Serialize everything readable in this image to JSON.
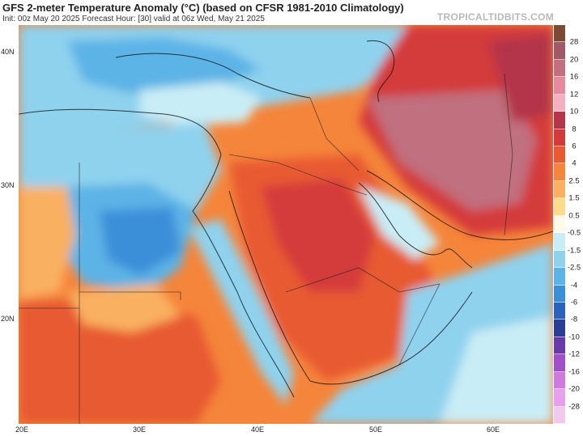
{
  "header": {
    "title": "GFS 2-meter Temperature Anomaly (°C) (based on CFSR 1981-2010 Climatology)",
    "subtitle": "Init: 00z May 20 2025   Forecast Hour: [30]   valid at 06z Wed, May 21 2025",
    "brand": "TROPICALTIDBITS.COM"
  },
  "axes": {
    "lat_labels": [
      "40N",
      "30N",
      "20N"
    ],
    "lat_values": [
      40,
      30,
      20
    ],
    "lon_labels": [
      "20E",
      "30E",
      "40E",
      "50E",
      "60E"
    ],
    "lon_values": [
      20,
      30,
      40,
      50,
      60
    ],
    "lon_range": [
      20,
      65
    ],
    "lat_range": [
      12,
      42
    ]
  },
  "colorbar": {
    "labels": [
      "28",
      "20",
      "16",
      "12",
      "10",
      "8",
      "6",
      "4",
      "2.5",
      "1.5",
      "0.5",
      "-0.5",
      "-1.5",
      "-2.5",
      "-4",
      "-6",
      "-8",
      "-10",
      "-12",
      "-16",
      "-20",
      "-28"
    ],
    "colors": [
      "#7a4a35",
      "#a05a66",
      "#c0707e",
      "#e68aa0",
      "#f4b0c0",
      "#b4364a",
      "#d43a3a",
      "#e85a30",
      "#f5853a",
      "#f9b060",
      "#fbdc8a",
      "#fbfbe8",
      "#c9edf6",
      "#8fd2ee",
      "#5bb3e6",
      "#3b8fd8",
      "#2a62be",
      "#2a3f94",
      "#6a3aa8",
      "#a050c8",
      "#d07ae0",
      "#e8a0ec",
      "#f3c8ef"
    ]
  },
  "map_colors": {
    "ocean_neutral": "#eaf5fb",
    "warm_1": "#fbdc8a",
    "warm_2": "#f9b060",
    "warm_3": "#f5853a",
    "warm_4": "#e85a30",
    "warm_5": "#d43a3a",
    "hot_1": "#b4364a",
    "hot_2": "#c0707e",
    "cool_1": "#c9edf6",
    "cool_2": "#8fd2ee",
    "cool_3": "#5bb3e6",
    "cool_4": "#3b8fd8",
    "cool_5": "#2a62be"
  }
}
